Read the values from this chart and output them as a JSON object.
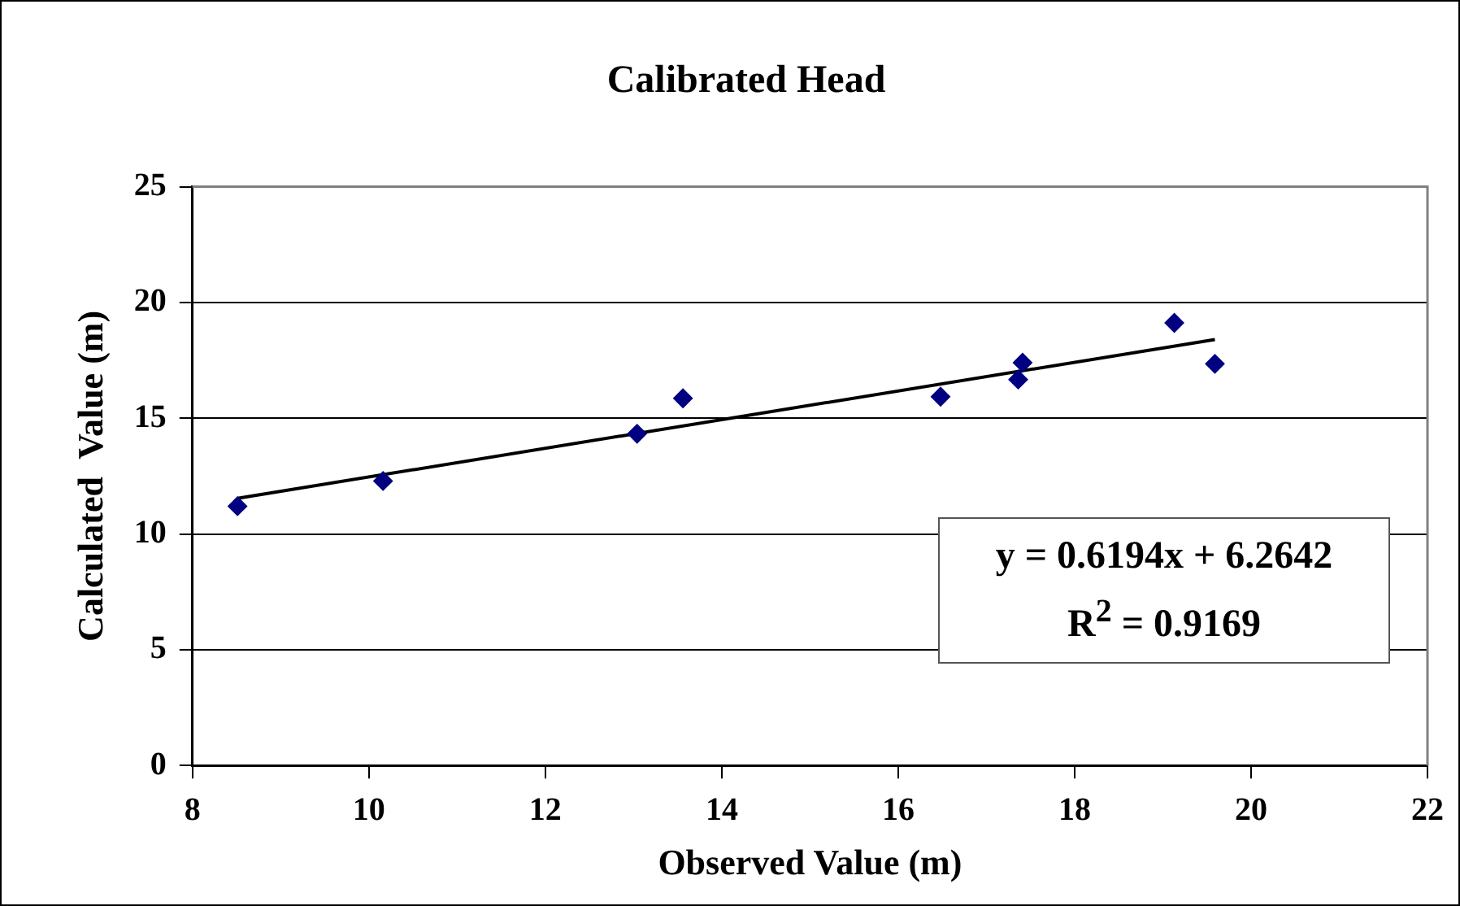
{
  "chart_data": {
    "type": "scatter",
    "title": "Calibrated Head",
    "xlabel": "Observed Value (m)",
    "ylabel": "Calculated  Value (m)",
    "xlim": [
      8,
      22
    ],
    "xticks": [
      8,
      10,
      12,
      14,
      16,
      18,
      20,
      22
    ],
    "ylim": [
      0,
      25
    ],
    "yticks": [
      0,
      5,
      10,
      15,
      20,
      25
    ],
    "grid": "y",
    "legend": false,
    "marker": "diamond",
    "series": [
      {
        "color": "#000080",
        "x": [
          8.51,
          10.16,
          13.04,
          13.56,
          16.48,
          17.36,
          17.41,
          19.13,
          19.59
        ],
        "values": [
          11.2,
          12.29,
          14.33,
          15.86,
          15.93,
          16.67,
          17.4,
          19.12,
          17.35
        ]
      },
      {
        "type": "line",
        "color": "#000000",
        "marker": "none",
        "line_style": "solid",
        "x": [
          8.51,
          19.59
        ],
        "values": [
          11.54,
          18.4
        ]
      }
    ],
    "annotations": [
      "y = 0.6194x + 6.2642",
      "R$^{2}$ = 0.9169"
    ]
  }
}
